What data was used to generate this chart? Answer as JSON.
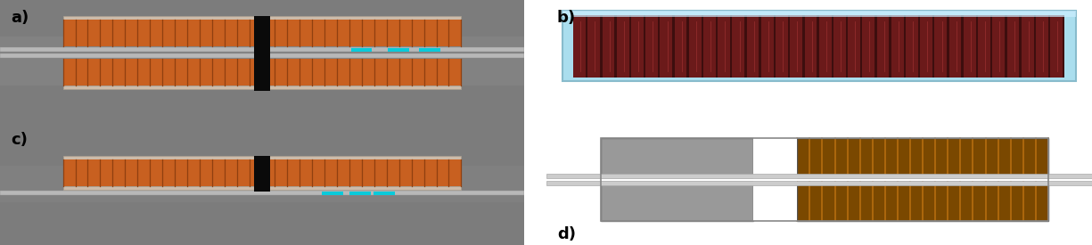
{
  "figsize": [
    12.25,
    2.75
  ],
  "dpi": 100,
  "bg_color": "#ffffff",
  "labels": [
    "a)",
    "b)",
    "c)",
    "d)"
  ],
  "label_fontsize": 13
}
